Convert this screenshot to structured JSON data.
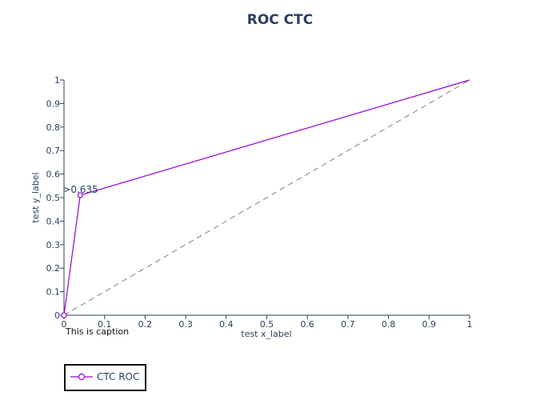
{
  "chart_data": {
    "type": "line",
    "title": "ROC CTC",
    "xlabel": "test x_label",
    "ylabel": "test y_label",
    "caption": "This is caption",
    "xlim": [
      0,
      1
    ],
    "ylim": [
      0,
      1
    ],
    "x_ticks": [
      0,
      0.1,
      0.2,
      0.3,
      0.4,
      0.5,
      0.6,
      0.7,
      0.8,
      0.9,
      1
    ],
    "y_ticks": [
      0,
      0.1,
      0.2,
      0.3,
      0.4,
      0.5,
      0.6,
      0.7,
      0.8,
      0.9,
      1
    ],
    "grid": false,
    "legend_position": "bottom-left",
    "series": [
      {
        "name": "CTC ROC",
        "color": "#9400D3",
        "x": [
          0,
          0.04,
          1
        ],
        "y": [
          0,
          0.51,
          1
        ],
        "marker_points": [
          {
            "x": 0,
            "y": 0
          },
          {
            "x": 0.04,
            "y": 0.51
          }
        ]
      }
    ],
    "reference_line": {
      "x": [
        0,
        1
      ],
      "y": [
        0,
        1
      ],
      "color": "#7f7f7f",
      "style": "dashed"
    },
    "annotations": [
      {
        "text": ">0.635",
        "x": 0.04,
        "y": 0.51
      }
    ]
  }
}
